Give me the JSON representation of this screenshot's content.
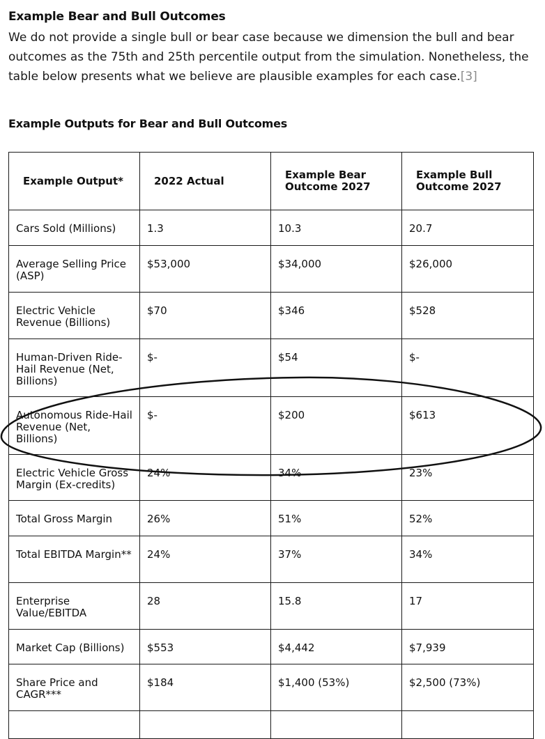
{
  "section": {
    "heading": "Example Bear and Bull Outcomes",
    "paragraph": "We do not provide a single bull or bear case because we dimension the bull and bear outcomes as the 75th and 25th percentile output from the simulation. Nonetheless, the table below presents what we believe are plausible examples for each case.",
    "reference": "[3]"
  },
  "table": {
    "title": "Example Outputs for Bear and Bull Outcomes",
    "headers": [
      "Example Output*",
      "2022 Actual",
      "Example Bear Outcome 2027",
      "Example Bull Outcome 2027"
    ],
    "rows": [
      [
        "Cars Sold (Millions)",
        "1.3",
        "10.3",
        "20.7"
      ],
      [
        "Average Selling Price (ASP)",
        "$53,000",
        "$34,000",
        "$26,000"
      ],
      [
        "Electric Vehicle Revenue (Billions)",
        "$70",
        "$346",
        "$528"
      ],
      [
        "Human-Driven Ride-Hail Revenue (Net, Billions)",
        "$-",
        "$54",
        "$-"
      ],
      [
        "Autonomous Ride-Hail Revenue (Net, Billions)",
        "$-",
        "$200",
        "$613"
      ],
      [
        "Electric Vehicle Gross Margin (Ex-credits)",
        "24%",
        "34%",
        "23%"
      ],
      [
        "Total Gross Margin",
        "26%",
        "51%",
        "52%"
      ],
      [
        "Total EBITDA Margin**",
        "24%",
        "37%",
        "34%"
      ],
      [
        "Enterprise Value/EBITDA",
        "28",
        "15.8",
        "17"
      ],
      [
        "Market Cap (Billions)",
        "$553",
        "$4,442",
        "$7,939"
      ],
      [
        "Share Price and CAGR***",
        "$184",
        "$1,400 (53%)",
        "$2,500 (73%)"
      ],
      [
        "",
        "",
        "",
        ""
      ]
    ]
  }
}
